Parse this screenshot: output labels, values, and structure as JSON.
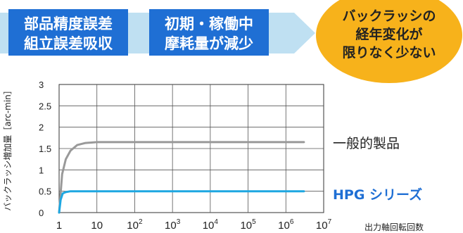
{
  "banner": {
    "step1": [
      "部品精度誤差",
      "組立誤差吸収"
    ],
    "step2": [
      "初期・稼働中",
      "摩耗量が減少"
    ],
    "result": [
      "バックラッシの",
      "経年変化が",
      "限りなく少ない"
    ],
    "colors": {
      "box": "#1f6fd4",
      "arrow": "#bfe0f2",
      "badge": "#f7b21b"
    }
  },
  "chart_data": {
    "type": "line",
    "ylabel": "バックラッシ増加量［arc-min］",
    "xlabel": "出力軸回転回数",
    "x_scale": "log",
    "xlim": [
      1,
      10000000
    ],
    "ylim": [
      0,
      3
    ],
    "grid": true,
    "y_ticks": [
      "0",
      "0.5",
      "1",
      "1.5",
      "2",
      "2.5",
      "3"
    ],
    "x_ticks": [
      {
        "base": "1",
        "exp": ""
      },
      {
        "base": "10",
        "exp": ""
      },
      {
        "base": "10",
        "exp": "2"
      },
      {
        "base": "10",
        "exp": "3"
      },
      {
        "base": "10",
        "exp": "4"
      },
      {
        "base": "10",
        "exp": "5"
      },
      {
        "base": "10",
        "exp": "6"
      },
      {
        "base": "10",
        "exp": "7"
      }
    ],
    "series": [
      {
        "name": "一般的製品",
        "color": "#999999",
        "x": [
          1,
          1.2,
          1.5,
          2,
          3,
          5,
          10,
          100,
          1000,
          10000,
          100000,
          1000000,
          3000000
        ],
        "y": [
          0,
          0.9,
          1.25,
          1.45,
          1.58,
          1.63,
          1.65,
          1.65,
          1.65,
          1.65,
          1.65,
          1.65,
          1.65
        ]
      },
      {
        "name": "HPG シリーズ",
        "color": "#1ea7e1",
        "x": [
          1,
          1.1,
          1.25,
          1.5,
          2,
          10,
          100,
          1000,
          10000,
          100000,
          1000000,
          3000000
        ],
        "y": [
          0,
          0.3,
          0.45,
          0.48,
          0.5,
          0.5,
          0.5,
          0.5,
          0.5,
          0.5,
          0.5,
          0.5
        ]
      }
    ]
  }
}
